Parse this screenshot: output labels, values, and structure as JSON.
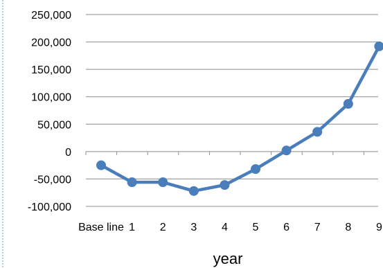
{
  "chart_data": {
    "type": "line",
    "categories": [
      "Base line",
      "1",
      "2",
      "3",
      "4",
      "5",
      "6",
      "7",
      "8",
      "9"
    ],
    "series": [
      {
        "values": [
          -25000,
          -56000,
          -56000,
          -72000,
          -61000,
          -32000,
          2000,
          36000,
          87000,
          192000
        ]
      }
    ],
    "title": "",
    "xlabel": "year",
    "ylabel": "",
    "ylim": [
      -100000,
      250000
    ],
    "yticks": [
      250000,
      200000,
      150000,
      100000,
      50000,
      0,
      -50000,
      -100000
    ],
    "ytick_labels": [
      "250,000",
      "200,000",
      "150,000",
      "100,000",
      "50,000",
      "0",
      "-50,000",
      "-100,000"
    ],
    "grid": true,
    "legend": "none",
    "colors": {
      "series": "#4a7ebb",
      "grid": "#8c8c8c"
    }
  }
}
